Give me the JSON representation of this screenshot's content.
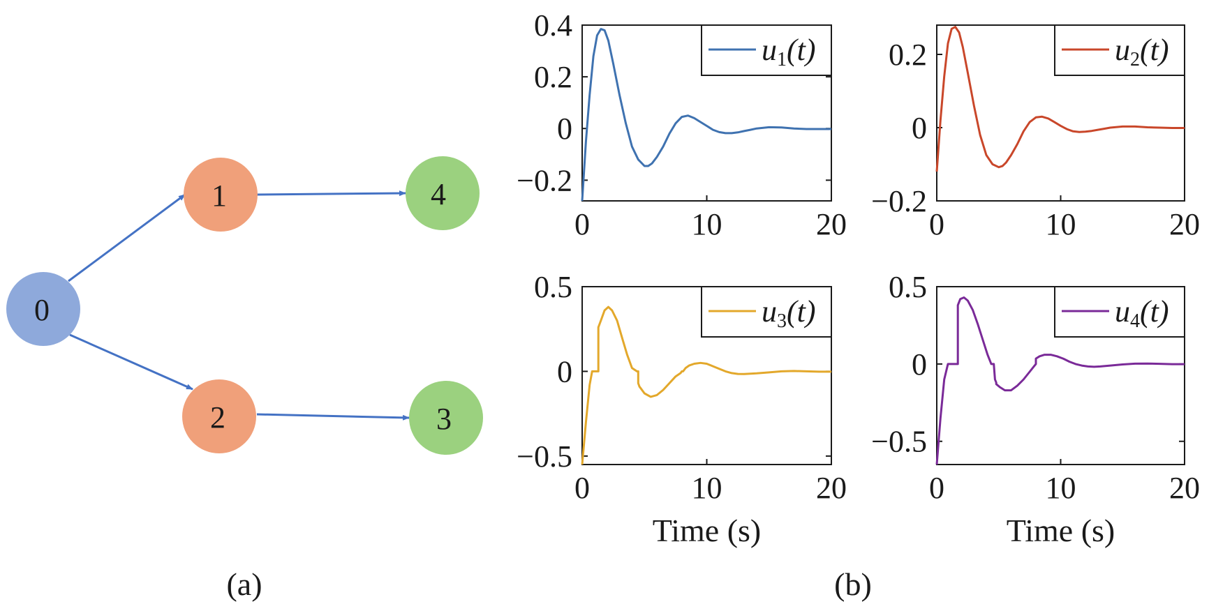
{
  "graph": {
    "caption": "(a)",
    "edge_color": "#4472C4",
    "nodes": [
      {
        "id": "0",
        "label": "0",
        "color": "#8EA9DB"
      },
      {
        "id": "1",
        "label": "1",
        "color": "#F0A07A"
      },
      {
        "id": "2",
        "label": "2",
        "color": "#F0A07A"
      },
      {
        "id": "3",
        "label": "3",
        "color": "#9BD17F"
      },
      {
        "id": "4",
        "label": "4",
        "color": "#9BD17F"
      }
    ],
    "edges": [
      {
        "from": "0",
        "to": "1"
      },
      {
        "from": "0",
        "to": "2"
      },
      {
        "from": "1",
        "to": "4"
      },
      {
        "from": "2",
        "to": "3"
      }
    ]
  },
  "caption_b": "(b)",
  "chart_data": [
    {
      "type": "line",
      "legend": {
        "main": "u",
        "sub": "1",
        "tail": "(t)"
      },
      "legend_position": "top-right",
      "color": "#3F72B0",
      "xlabel": "",
      "xlim": [
        0,
        20
      ],
      "ylim": [
        -0.28,
        0.4
      ],
      "xticks": [
        0,
        10,
        20
      ],
      "xtick_labels": [
        "0",
        "10",
        "20"
      ],
      "yticks": [
        0.4,
        0.2,
        0,
        -0.2
      ],
      "ytick_labels": [
        "0.4",
        "0.2",
        "0",
        "−0.2"
      ],
      "x": [
        0,
        0.3,
        0.6,
        0.9,
        1.2,
        1.5,
        1.8,
        2.1,
        2.5,
        3.0,
        3.5,
        4.0,
        4.5,
        5.0,
        5.3,
        5.6,
        6.0,
        6.5,
        7.0,
        7.5,
        8.0,
        8.5,
        9.0,
        9.5,
        10.0,
        10.5,
        11.0,
        11.5,
        12.0,
        12.5,
        13.0,
        13.5,
        14.0,
        15.0,
        16.0,
        17.0,
        18.0,
        19.0,
        20.0
      ],
      "y": [
        -0.28,
        -0.05,
        0.13,
        0.28,
        0.36,
        0.385,
        0.38,
        0.34,
        0.25,
        0.13,
        0.02,
        -0.07,
        -0.12,
        -0.145,
        -0.145,
        -0.135,
        -0.11,
        -0.07,
        -0.02,
        0.02,
        0.045,
        0.05,
        0.04,
        0.025,
        0.01,
        -0.005,
        -0.014,
        -0.018,
        -0.018,
        -0.015,
        -0.01,
        -0.005,
        0.0,
        0.005,
        0.004,
        0.0,
        -0.002,
        -0.002,
        -0.002
      ]
    },
    {
      "type": "line",
      "legend": {
        "main": "u",
        "sub": "2",
        "tail": "(t)"
      },
      "legend_position": "top-right",
      "color": "#C9472A",
      "xlabel": "",
      "xlim": [
        0,
        20
      ],
      "ylim": [
        -0.2,
        0.28
      ],
      "xticks": [
        0,
        10,
        20
      ],
      "xtick_labels": [
        "0",
        "10",
        "20"
      ],
      "yticks": [
        0.2,
        0,
        -0.2
      ],
      "ytick_labels": [
        "0.2",
        "0",
        "−0.2"
      ],
      "x": [
        0,
        0.3,
        0.6,
        0.9,
        1.2,
        1.5,
        1.8,
        2.1,
        2.5,
        3.0,
        3.5,
        4.0,
        4.5,
        5.0,
        5.3,
        5.6,
        6.0,
        6.5,
        7.0,
        7.5,
        8.0,
        8.5,
        9.0,
        9.5,
        10.0,
        10.5,
        11.0,
        11.5,
        12.0,
        12.5,
        13.0,
        13.5,
        14.0,
        15.0,
        16.0,
        17.0,
        18.0,
        19.0,
        20.0
      ],
      "y": [
        -0.12,
        0.02,
        0.14,
        0.23,
        0.27,
        0.275,
        0.26,
        0.22,
        0.15,
        0.06,
        -0.02,
        -0.075,
        -0.1,
        -0.108,
        -0.105,
        -0.095,
        -0.075,
        -0.045,
        -0.01,
        0.015,
        0.028,
        0.03,
        0.025,
        0.015,
        0.005,
        -0.004,
        -0.01,
        -0.012,
        -0.011,
        -0.009,
        -0.006,
        -0.003,
        0.0,
        0.003,
        0.003,
        0.001,
        0.0,
        -0.001,
        -0.001
      ]
    },
    {
      "type": "line",
      "legend": {
        "main": "u",
        "sub": "3",
        "tail": "(t)"
      },
      "legend_position": "top-right",
      "color": "#E3A82B",
      "xlabel": "Time (s)",
      "xlim": [
        0,
        20
      ],
      "ylim": [
        -0.55,
        0.5
      ],
      "xticks": [
        0,
        10,
        20
      ],
      "xtick_labels": [
        "0",
        "10",
        "20"
      ],
      "yticks": [
        0.5,
        0,
        -0.5
      ],
      "ytick_labels": [
        "0.5",
        "0",
        "−0.5"
      ],
      "x": [
        0,
        0.3,
        0.6,
        0.8,
        1.0,
        1.2,
        1.3,
        1.3,
        1.5,
        1.8,
        2.1,
        2.4,
        2.8,
        3.2,
        3.6,
        4.0,
        4.4,
        4.5,
        4.5,
        4.6,
        4.7,
        4.7,
        5.0,
        5.5,
        6.0,
        6.5,
        7.0,
        7.5,
        7.9,
        8.0,
        8.1,
        8.3,
        8.6,
        9.0,
        9.5,
        10.0,
        10.5,
        11.0,
        11.5,
        12.0,
        12.5,
        13.0,
        14.0,
        15.0,
        16.0,
        17.0,
        18.0,
        19.0,
        20.0
      ],
      "y": [
        -0.55,
        -0.3,
        -0.08,
        0.0,
        0.0,
        0.0,
        0.0,
        0.26,
        0.3,
        0.36,
        0.38,
        0.36,
        0.3,
        0.2,
        0.1,
        0.02,
        0.0,
        0.0,
        -0.07,
        -0.09,
        -0.1,
        -0.1,
        -0.13,
        -0.15,
        -0.14,
        -0.11,
        -0.07,
        -0.03,
        -0.01,
        0.0,
        0.0,
        0.02,
        0.035,
        0.045,
        0.05,
        0.045,
        0.03,
        0.015,
        0.0,
        -0.01,
        -0.015,
        -0.016,
        -0.012,
        -0.006,
        0.0,
        0.002,
        0.0,
        -0.002,
        -0.002
      ]
    },
    {
      "type": "line",
      "legend": {
        "main": "u",
        "sub": "4",
        "tail": "(t)"
      },
      "legend_position": "top-right",
      "color": "#7A2A98",
      "xlabel": "Time (s)",
      "xlim": [
        0,
        20
      ],
      "ylim": [
        -0.65,
        0.5
      ],
      "xticks": [
        0,
        10,
        20
      ],
      "xtick_labels": [
        "0",
        "10",
        "20"
      ],
      "yticks": [
        0.5,
        0,
        -0.5
      ],
      "ytick_labels": [
        "0.5",
        "0",
        "−0.5"
      ],
      "x": [
        0,
        0.3,
        0.6,
        0.9,
        1.2,
        1.5,
        1.7,
        1.7,
        1.9,
        2.2,
        2.5,
        2.9,
        3.3,
        3.7,
        4.1,
        4.4,
        4.6,
        4.6,
        4.7,
        4.8,
        4.8,
        5.1,
        5.5,
        6.0,
        6.5,
        7.0,
        7.5,
        7.9,
        8.0,
        8.0,
        8.3,
        8.7,
        9.2,
        9.7,
        10.2,
        10.7,
        11.2,
        11.7,
        12.2,
        12.7,
        13.2,
        14.0,
        15.0,
        16.0,
        17.0,
        18.0,
        19.0,
        20.0
      ],
      "y": [
        -0.65,
        -0.35,
        -0.1,
        0.0,
        0.0,
        0.0,
        0.0,
        0.38,
        0.42,
        0.43,
        0.41,
        0.35,
        0.26,
        0.16,
        0.06,
        0.0,
        0.0,
        0.0,
        -0.1,
        -0.12,
        -0.13,
        -0.15,
        -0.17,
        -0.17,
        -0.14,
        -0.1,
        -0.05,
        -0.01,
        0.0,
        0.035,
        0.05,
        0.06,
        0.06,
        0.05,
        0.035,
        0.015,
        0.0,
        -0.01,
        -0.016,
        -0.018,
        -0.016,
        -0.01,
        -0.003,
        0.002,
        0.003,
        0.001,
        -0.001,
        -0.001
      ]
    }
  ]
}
